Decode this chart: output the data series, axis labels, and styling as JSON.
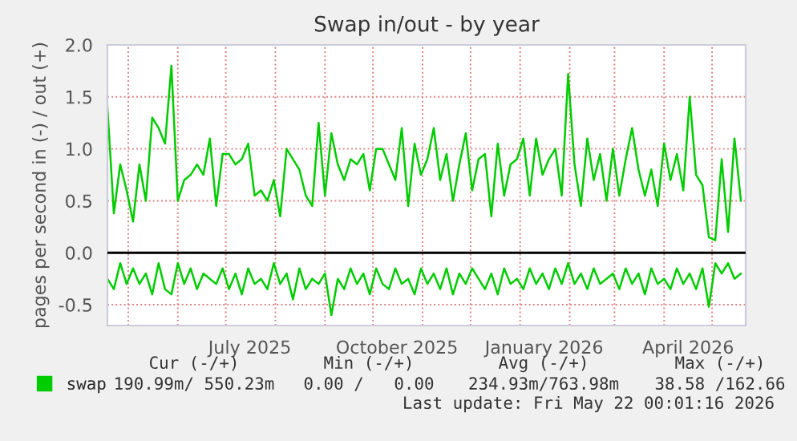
{
  "chart_data": {
    "type": "line",
    "title": "Swap in/out - by year",
    "ylabel": "pages per second in (-) / out (+)",
    "x": [
      "2025-04-18",
      "2025-04-22",
      "2025-04-26",
      "2025-04-30",
      "2025-05-04",
      "2025-05-08",
      "2025-05-12",
      "2025-05-16",
      "2025-05-20",
      "2025-05-24",
      "2025-05-28",
      "2025-06-01",
      "2025-06-05",
      "2025-06-09",
      "2025-06-13",
      "2025-06-17",
      "2025-06-21",
      "2025-06-25",
      "2025-06-29",
      "2025-07-03",
      "2025-07-07",
      "2025-07-11",
      "2025-07-15",
      "2025-07-19",
      "2025-07-23",
      "2025-07-27",
      "2025-07-31",
      "2025-08-04",
      "2025-08-08",
      "2025-08-12",
      "2025-08-16",
      "2025-08-20",
      "2025-08-24",
      "2025-08-28",
      "2025-09-01",
      "2025-09-05",
      "2025-09-09",
      "2025-09-13",
      "2025-09-17",
      "2025-09-21",
      "2025-09-25",
      "2025-09-29",
      "2025-10-03",
      "2025-10-07",
      "2025-10-11",
      "2025-10-15",
      "2025-10-19",
      "2025-10-23",
      "2025-10-27",
      "2025-10-31",
      "2025-11-04",
      "2025-11-08",
      "2025-11-12",
      "2025-11-16",
      "2025-11-20",
      "2025-11-24",
      "2025-11-28",
      "2025-12-02",
      "2025-12-06",
      "2025-12-10",
      "2025-12-14",
      "2025-12-18",
      "2025-12-22",
      "2025-12-26",
      "2025-12-30",
      "2026-01-03",
      "2026-01-07",
      "2026-01-11",
      "2026-01-15",
      "2026-01-19",
      "2026-01-23",
      "2026-01-27",
      "2026-01-31",
      "2026-02-04",
      "2026-02-08",
      "2026-02-12",
      "2026-02-16",
      "2026-02-20",
      "2026-02-24",
      "2026-02-28",
      "2026-03-04",
      "2026-03-08",
      "2026-03-12",
      "2026-03-16",
      "2026-03-20",
      "2026-03-24",
      "2026-03-28",
      "2026-04-01",
      "2026-04-05",
      "2026-04-09",
      "2026-04-13",
      "2026-04-17",
      "2026-04-21",
      "2026-04-25",
      "2026-04-29",
      "2026-05-03",
      "2026-05-07",
      "2026-05-11",
      "2026-05-15",
      "2026-05-19"
    ],
    "series": [
      {
        "name": "swap",
        "color": "#00cc00",
        "values": [
          1.4,
          0.38,
          0.85,
          0.6,
          0.3,
          0.85,
          0.5,
          1.3,
          1.2,
          1.05,
          1.8,
          0.5,
          0.7,
          0.75,
          0.85,
          0.75,
          1.1,
          0.45,
          0.95,
          0.95,
          0.85,
          0.9,
          1.05,
          0.55,
          0.6,
          0.5,
          0.7,
          0.35,
          1.0,
          0.9,
          0.8,
          0.55,
          0.45,
          1.25,
          0.55,
          1.15,
          0.85,
          0.7,
          0.9,
          0.85,
          0.95,
          0.6,
          1.0,
          1.0,
          0.85,
          0.7,
          1.2,
          0.45,
          1.05,
          0.75,
          0.9,
          1.2,
          0.7,
          0.95,
          0.5,
          0.85,
          1.15,
          0.6,
          0.9,
          0.95,
          0.35,
          1.05,
          0.55,
          0.85,
          0.9,
          1.1,
          0.55,
          1.1,
          0.75,
          0.9,
          1.0,
          0.55,
          1.72,
          0.85,
          0.45,
          1.1,
          0.7,
          0.95,
          0.5,
          1.0,
          0.55,
          0.9,
          1.2,
          0.8,
          0.55,
          0.8,
          0.45,
          1.05,
          0.7,
          0.95,
          0.6,
          1.5,
          0.75,
          0.65,
          0.15,
          0.12,
          0.9,
          0.2,
          1.1,
          0.5
        ]
      },
      {
        "color": "#00cc00",
        "values": [
          -0.25,
          -0.35,
          -0.1,
          -0.3,
          -0.15,
          -0.3,
          -0.2,
          -0.4,
          -0.1,
          -0.35,
          -0.4,
          -0.1,
          -0.3,
          -0.15,
          -0.35,
          -0.2,
          -0.25,
          -0.3,
          -0.15,
          -0.35,
          -0.2,
          -0.4,
          -0.15,
          -0.3,
          -0.25,
          -0.35,
          -0.1,
          -0.3,
          -0.2,
          -0.45,
          -0.15,
          -0.35,
          -0.25,
          -0.3,
          -0.2,
          -0.6,
          -0.25,
          -0.35,
          -0.15,
          -0.3,
          -0.2,
          -0.4,
          -0.15,
          -0.3,
          -0.35,
          -0.15,
          -0.3,
          -0.25,
          -0.4,
          -0.15,
          -0.3,
          -0.2,
          -0.35,
          -0.15,
          -0.4,
          -0.2,
          -0.3,
          -0.15,
          -0.25,
          -0.35,
          -0.2,
          -0.4,
          -0.15,
          -0.3,
          -0.25,
          -0.35,
          -0.15,
          -0.3,
          -0.2,
          -0.35,
          -0.15,
          -0.3,
          -0.1,
          -0.3,
          -0.2,
          -0.35,
          -0.15,
          -0.3,
          -0.25,
          -0.2,
          -0.35,
          -0.15,
          -0.3,
          -0.2,
          -0.4,
          -0.15,
          -0.3,
          -0.25,
          -0.35,
          -0.15,
          -0.3,
          -0.2,
          -0.35,
          -0.15,
          -0.52,
          -0.1,
          -0.2,
          -0.1,
          -0.25,
          -0.2
        ]
      }
    ],
    "xlim": [
      "2025-04-18",
      "2026-05-22"
    ],
    "xticks": [
      {
        "value": "2025-05-01",
        "label": null
      },
      {
        "value": "2025-06-01",
        "label": null
      },
      {
        "value": "2025-07-01",
        "label": null
      },
      {
        "value": "2025-08-01",
        "label": null
      },
      {
        "value": "2025-09-01",
        "label": null
      },
      {
        "value": "2025-10-01",
        "label": null
      },
      {
        "value": "2025-11-01",
        "label": null
      },
      {
        "value": "2025-12-01",
        "label": null
      },
      {
        "value": "2026-01-01",
        "label": null
      },
      {
        "value": "2026-02-01",
        "label": null
      },
      {
        "value": "2026-03-01",
        "label": null
      },
      {
        "value": "2026-04-01",
        "label": null
      },
      {
        "value": "2026-05-01",
        "label": null
      },
      {
        "value": "2025-07-16",
        "label": "July 2025"
      },
      {
        "value": "2025-10-16",
        "label": "October 2025"
      },
      {
        "value": "2026-01-16",
        "label": "January 2026"
      },
      {
        "value": "2026-04-16",
        "label": "April 2026"
      }
    ],
    "ylim": [
      -0.7,
      2.0
    ],
    "yticks": [
      -0.5,
      {
        "value": 0.0,
        "label": "0.0"
      },
      0.5,
      {
        "value": 1.0,
        "label": "1.0"
      },
      1.5,
      {
        "value": 2.0,
        "label": "2.0"
      }
    ],
    "ref_lines": [
      {
        "axis": "y",
        "value": 0,
        "color": "#000000"
      }
    ],
    "grid": true,
    "legend": "bottom",
    "marker": "none",
    "line_style": "solid",
    "annotations": [
      "Cur (-/+)",
      "Min (-/+)",
      "Avg (-/+)",
      "Max (-/+)",
      "190.99m/ 550.23m",
      "0.00 /   0.00",
      "234.93m/763.98m",
      "38.58 /162.66",
      "Last update: Fri May 22 00:01:16 2026"
    ]
  }
}
